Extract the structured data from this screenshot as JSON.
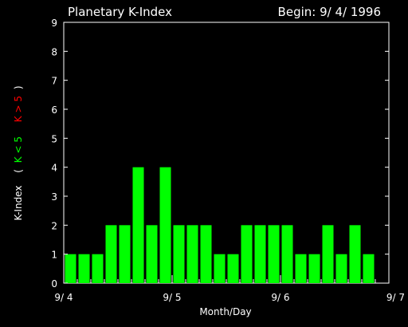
{
  "header": {
    "title": "Planetary K-Index",
    "begin": "Begin: 9/ 4/ 1996"
  },
  "chart_data": {
    "type": "bar",
    "title": "Planetary K-Index",
    "xlabel": "Month/Day",
    "ylabel": "K-Index",
    "ylabel_parts": [
      {
        "text": "K-Index",
        "color": "#ffffff"
      },
      {
        "text": "(",
        "color": "#ffffff"
      },
      {
        "text": "K < 5",
        "color": "#00ff00"
      },
      {
        "text": "K > 5",
        "color": "#ff0000"
      },
      {
        "text": ")",
        "color": "#ffffff"
      }
    ],
    "ylim": [
      0,
      9
    ],
    "yticks": [
      0,
      1,
      2,
      3,
      4,
      5,
      6,
      7,
      8,
      9
    ],
    "xtick_labels": [
      "9/ 4",
      "9/ 5",
      "9/ 6",
      "9/ 7"
    ],
    "bars_per_day": 8,
    "days": 3,
    "values": [
      1,
      1,
      1,
      2,
      2,
      4,
      2,
      4,
      2,
      2,
      2,
      1,
      1,
      2,
      2,
      2,
      2,
      1,
      1,
      2,
      1,
      2,
      1
    ],
    "colors": {
      "below_5": "#00ff00",
      "above_5": "#ff0000",
      "axes": "#ffffff",
      "background": "#000000"
    }
  }
}
